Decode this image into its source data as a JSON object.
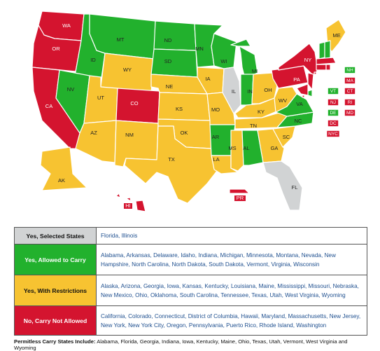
{
  "colors": {
    "selected": "#d1d3d4",
    "allowed": "#22b12d",
    "restrictions": "#f7c331",
    "not_allowed": "#d4142f",
    "legend_link": "#1e4f8f"
  },
  "states": [
    {
      "abbr": "WA",
      "cat": "not_allowed"
    },
    {
      "abbr": "OR",
      "cat": "not_allowed"
    },
    {
      "abbr": "CA",
      "cat": "not_allowed"
    },
    {
      "abbr": "ID",
      "cat": "allowed"
    },
    {
      "abbr": "NV",
      "cat": "allowed"
    },
    {
      "abbr": "MT",
      "cat": "allowed"
    },
    {
      "abbr": "WY",
      "cat": "restrictions"
    },
    {
      "abbr": "UT",
      "cat": "restrictions"
    },
    {
      "abbr": "AZ",
      "cat": "restrictions"
    },
    {
      "abbr": "CO",
      "cat": "not_allowed"
    },
    {
      "abbr": "NM",
      "cat": "restrictions"
    },
    {
      "abbr": "ND",
      "cat": "allowed"
    },
    {
      "abbr": "SD",
      "cat": "allowed"
    },
    {
      "abbr": "NE",
      "cat": "restrictions"
    },
    {
      "abbr": "KS",
      "cat": "restrictions"
    },
    {
      "abbr": "OK",
      "cat": "restrictions"
    },
    {
      "abbr": "TX",
      "cat": "restrictions"
    },
    {
      "abbr": "MN",
      "cat": "allowed"
    },
    {
      "abbr": "IA",
      "cat": "restrictions"
    },
    {
      "abbr": "MO",
      "cat": "restrictions"
    },
    {
      "abbr": "AR",
      "cat": "allowed"
    },
    {
      "abbr": "LA",
      "cat": "restrictions"
    },
    {
      "abbr": "WI",
      "cat": "allowed"
    },
    {
      "abbr": "IL",
      "cat": "selected"
    },
    {
      "abbr": "MI",
      "cat": "allowed"
    },
    {
      "abbr": "IN",
      "cat": "allowed"
    },
    {
      "abbr": "OH",
      "cat": "restrictions"
    },
    {
      "abbr": "KY",
      "cat": "restrictions"
    },
    {
      "abbr": "TN",
      "cat": "restrictions"
    },
    {
      "abbr": "MS",
      "cat": "restrictions"
    },
    {
      "abbr": "AL",
      "cat": "allowed"
    },
    {
      "abbr": "GA",
      "cat": "restrictions"
    },
    {
      "abbr": "FL",
      "cat": "selected"
    },
    {
      "abbr": "SC",
      "cat": "restrictions"
    },
    {
      "abbr": "NC",
      "cat": "allowed"
    },
    {
      "abbr": "VA",
      "cat": "allowed"
    },
    {
      "abbr": "WV",
      "cat": "restrictions"
    },
    {
      "abbr": "PA",
      "cat": "not_allowed"
    },
    {
      "abbr": "NY",
      "cat": "not_allowed"
    },
    {
      "abbr": "ME",
      "cat": "restrictions"
    },
    {
      "abbr": "AK",
      "cat": "restrictions"
    },
    {
      "abbr": "HI",
      "cat": "not_allowed"
    },
    {
      "abbr": "PR",
      "cat": "not_allowed"
    }
  ],
  "small_states": [
    {
      "abbr": "VT",
      "cat": "allowed"
    },
    {
      "abbr": "NH",
      "cat": "allowed"
    },
    {
      "abbr": "MA",
      "cat": "not_allowed"
    },
    {
      "abbr": "CT",
      "cat": "not_allowed"
    },
    {
      "abbr": "RI",
      "cat": "not_allowed"
    },
    {
      "abbr": "NJ",
      "cat": "not_allowed"
    },
    {
      "abbr": "DE",
      "cat": "allowed"
    },
    {
      "abbr": "MD",
      "cat": "not_allowed"
    },
    {
      "abbr": "DC",
      "cat": "not_allowed"
    },
    {
      "abbr": "NYC",
      "cat": "not_allowed"
    }
  ],
  "legend": [
    {
      "cat": "selected",
      "label": "Yes, Selected States",
      "states": "Florida, Illinois"
    },
    {
      "cat": "allowed",
      "label": "Yes, Allowed to Carry",
      "states": "Alabama, Arkansas, Delaware, Idaho, Indiana, Michigan, Minnesota, Montana, Nevada, New Hampshire, North Carolina, North Dakota, South Dakota, Vermont, Virginia, Wisconsin"
    },
    {
      "cat": "restrictions",
      "label": "Yes, With Restrictions",
      "states": "Alaska, Arizona, Georgia, Iowa, Kansas, Kentucky, Louisiana, Maine, Mississippi, Missouri, Nebraska, New Mexico, Ohio, Oklahoma, South Carolina, Tennessee, Texas, Utah, West Virginia, Wyoming"
    },
    {
      "cat": "not_allowed",
      "label": "No, Carry Not Allowed",
      "states": "California, Colorado, Connecticut, District of Columbia, Hawaii, Maryland, Massachusetts, New Jersey, New York, New York City, Oregon, Pennsylvania, Puerto Rico, Rhode Island, Washington"
    }
  ],
  "footer": {
    "heading": "Permitless Carry States Include:",
    "states": "Alabama, Florida, Georgia, Indiana, Iowa, Kentucky, Maine, Ohio, Texas, Utah, Vermont, West Virginia and Wyoming"
  }
}
